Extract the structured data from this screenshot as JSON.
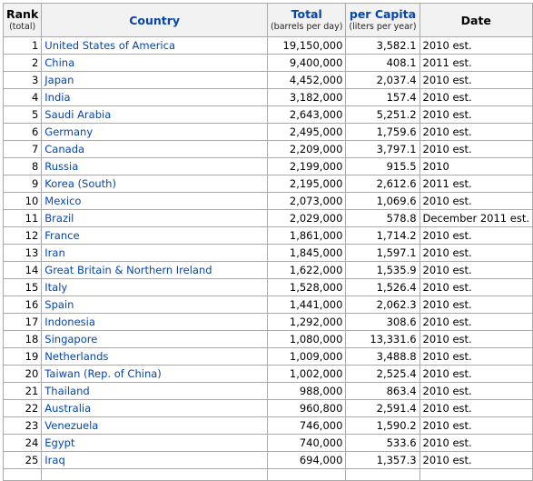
{
  "headers": {
    "rank": {
      "main": "Rank",
      "sub": "(total)"
    },
    "country": {
      "main": "Country"
    },
    "total": {
      "main": "Total",
      "sub": "(barrels per day)"
    },
    "per_capita": {
      "main": "per Capita",
      "sub": "(liters per year)"
    },
    "date": {
      "main": "Date"
    }
  },
  "rows": [
    {
      "rank": "1",
      "country": "United States of America",
      "total": "19,150,000",
      "per_capita": "3,582.1",
      "date": "2010 est."
    },
    {
      "rank": "2",
      "country": "China",
      "total": "9,400,000",
      "per_capita": "408.1",
      "date": "2011 est."
    },
    {
      "rank": "3",
      "country": "Japan",
      "total": "4,452,000",
      "per_capita": "2,037.4",
      "date": "2010 est."
    },
    {
      "rank": "4",
      "country": "India",
      "total": "3,182,000",
      "per_capita": "157.4",
      "date": "2010 est."
    },
    {
      "rank": "5",
      "country": "Saudi Arabia",
      "total": "2,643,000",
      "per_capita": "5,251.2",
      "date": "2010 est."
    },
    {
      "rank": "6",
      "country": "Germany",
      "total": "2,495,000",
      "per_capita": "1,759.6",
      "date": "2010 est."
    },
    {
      "rank": "7",
      "country": "Canada",
      "total": "2,209,000",
      "per_capita": "3,797.1",
      "date": "2010 est."
    },
    {
      "rank": "8",
      "country": "Russia",
      "total": "2,199,000",
      "per_capita": "915.5",
      "date": "2010"
    },
    {
      "rank": "9",
      "country": "Korea (South)",
      "total": "2,195,000",
      "per_capita": "2,612.6",
      "date": "2011 est."
    },
    {
      "rank": "10",
      "country": "Mexico",
      "total": "2,073,000",
      "per_capita": "1,069.6",
      "date": "2010 est."
    },
    {
      "rank": "11",
      "country": "Brazil",
      "total": "2,029,000",
      "per_capita": "578.8",
      "date": "December 2011 est."
    },
    {
      "rank": "12",
      "country": "France",
      "total": "1,861,000",
      "per_capita": "1,714.2",
      "date": "2010 est."
    },
    {
      "rank": "13",
      "country": "Iran",
      "total": "1,845,000",
      "per_capita": "1,597.1",
      "date": "2010 est."
    },
    {
      "rank": "14",
      "country": "Great Britain & Northern Ireland",
      "total": "1,622,000",
      "per_capita": "1,535.9",
      "date": "2010 est."
    },
    {
      "rank": "15",
      "country": "Italy",
      "total": "1,528,000",
      "per_capita": "1,526.4",
      "date": "2010 est."
    },
    {
      "rank": "16",
      "country": "Spain",
      "total": "1,441,000",
      "per_capita": "2,062.3",
      "date": "2010 est."
    },
    {
      "rank": "17",
      "country": "Indonesia",
      "total": "1,292,000",
      "per_capita": "308.6",
      "date": "2010 est."
    },
    {
      "rank": "18",
      "country": "Singapore",
      "total": "1,080,000",
      "per_capita": "13,331.6",
      "date": "2010 est."
    },
    {
      "rank": "19",
      "country": "Netherlands",
      "total": "1,009,000",
      "per_capita": "3,488.8",
      "date": "2010 est."
    },
    {
      "rank": "20",
      "country": "Taiwan (Rep. of China)",
      "total": "1,002,000",
      "per_capita": "2,525.4",
      "date": "2010 est."
    },
    {
      "rank": "21",
      "country": "Thailand",
      "total": "988,000",
      "per_capita": "863.4",
      "date": "2010 est."
    },
    {
      "rank": "22",
      "country": "Australia",
      "total": "960,800",
      "per_capita": "2,591.4",
      "date": "2010 est."
    },
    {
      "rank": "23",
      "country": "Venezuela",
      "total": "746,000",
      "per_capita": "1,590.2",
      "date": "2010 est."
    },
    {
      "rank": "24",
      "country": "Egypt",
      "total": "740,000",
      "per_capita": "533.6",
      "date": "2010 est."
    },
    {
      "rank": "25",
      "country": "Iraq",
      "total": "694,000",
      "per_capita": "1,357.3",
      "date": "2010 est."
    }
  ]
}
